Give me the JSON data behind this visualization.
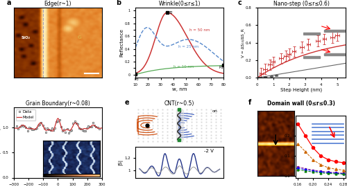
{
  "title_a": "Edge(r~1)",
  "title_b": "Wrinkle(0≤r≤1)",
  "title_c": "Nano-step (0≤r≤0.6)",
  "title_d": "Grain Boundary(r~0.08)",
  "title_e": "CNT(r~0.5)",
  "title_f": "Domain wall (0≤r≤0.3)",
  "panel_labels": [
    "a",
    "b",
    "c",
    "d",
    "e",
    "f"
  ],
  "bg_color": "#ffffff"
}
